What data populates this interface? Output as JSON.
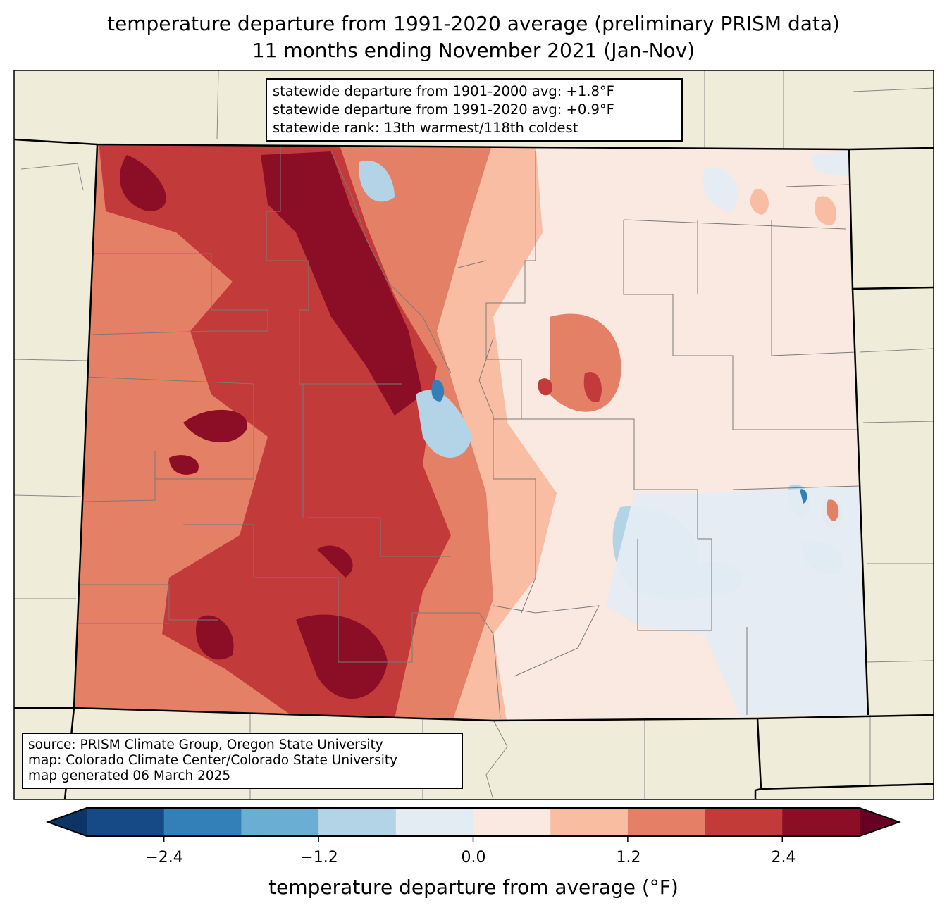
{
  "title": {
    "line1": "temperature departure from 1991-2020 average (preliminary PRISM data)",
    "line2": "11 months ending November 2021 (Jan-Nov)"
  },
  "info_box": {
    "line1": "statewide departure from 1901-2000 avg: +1.8°F",
    "line2": "statewide departure from 1991-2020 avg: +0.9°F",
    "line3": "statewide rank: 13th warmest/118th coldest"
  },
  "source_box": {
    "line1": "source: PRISM Climate Group, Oregon State University",
    "line2": "map: Colorado Climate Center/Colorado State University",
    "line3": "map generated 06 March 2025"
  },
  "colorbar": {
    "label": "temperature departure from average (°F)",
    "boundaries": [
      -3.0,
      -2.4,
      -1.8,
      -1.2,
      -0.6,
      0.0,
      0.6,
      1.2,
      1.8,
      2.4,
      3.0
    ],
    "colors": [
      "#154a86",
      "#3380b9",
      "#6aaed3",
      "#b2d4e6",
      "#e4ecf3",
      "#f9e9e0",
      "#f9bda4",
      "#e48066",
      "#c33a3b",
      "#8b0d26"
    ],
    "extend_low_color": "#0b3567",
    "extend_high_color": "#670022",
    "ticks": [
      "−2.4",
      "−1.2",
      "0.0",
      "1.2",
      "2.4"
    ]
  }
}
